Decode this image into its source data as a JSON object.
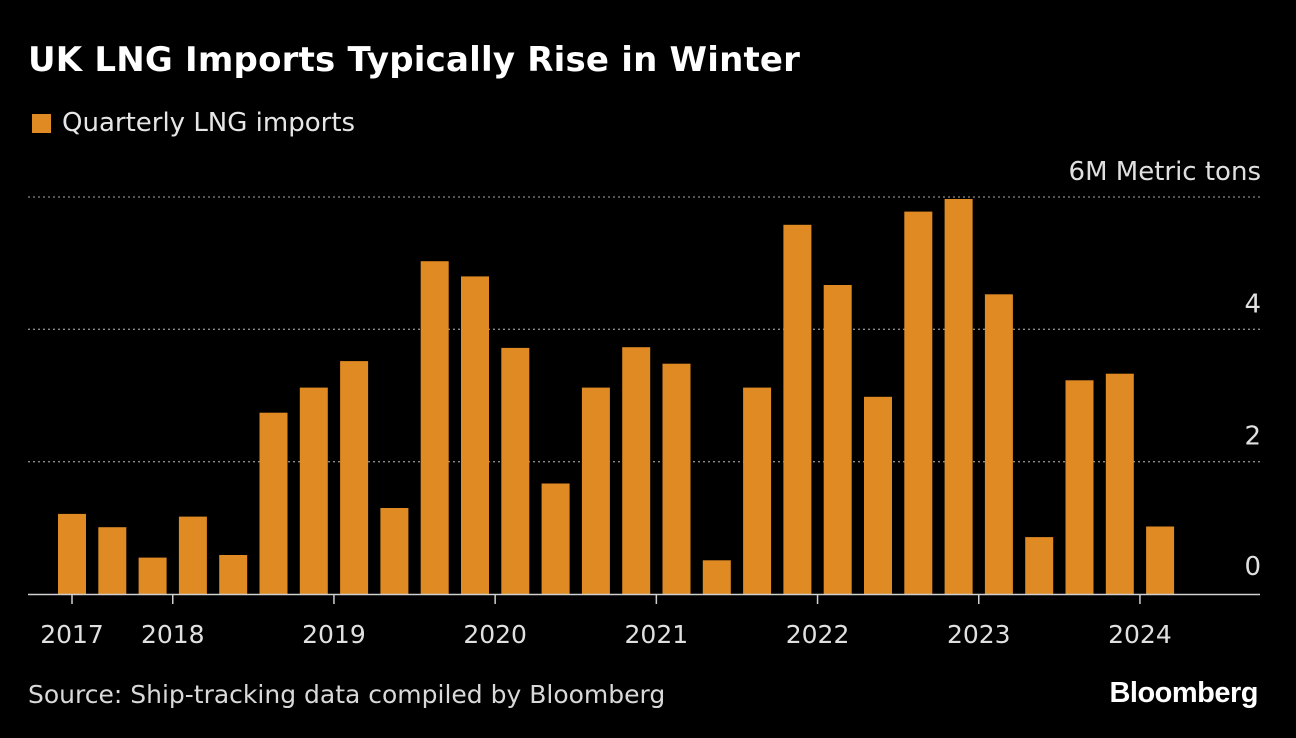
{
  "title": "UK LNG Imports Typically Rise in Winter",
  "legend": {
    "label": "Quarterly LNG imports"
  },
  "source": "Source: Ship-tracking data compiled by Bloomberg",
  "logo": "Bloomberg",
  "colors": {
    "bar": "#df8a22",
    "background": "#000000",
    "grid": "#8a8a8a",
    "text": "#e0e0e0"
  },
  "chart_data": {
    "type": "bar",
    "series": [
      {
        "name": "Quarterly LNG imports",
        "values": [
          1.21,
          1.01,
          0.55,
          1.17,
          0.59,
          2.74,
          3.12,
          3.52,
          1.3,
          5.03,
          4.8,
          3.72,
          1.67,
          3.12,
          3.73,
          3.48,
          0.51,
          3.12,
          5.58,
          4.67,
          2.98,
          5.78,
          5.97,
          4.53,
          0.86,
          3.23,
          3.33,
          1.02
        ]
      }
    ],
    "categories": [
      "2017 Q1",
      "2017 Q2",
      "2017 Q3",
      "2017 Q4",
      "2018 Q1",
      "2018 Q2",
      "2018 Q3",
      "2018 Q4",
      "2019 Q1",
      "2019 Q2",
      "2019 Q3",
      "2019 Q4",
      "2020 Q1",
      "2020 Q2",
      "2020 Q3",
      "2020 Q4",
      "2021 Q1",
      "2021 Q2",
      "2021 Q3",
      "2021 Q4",
      "2022 Q1",
      "2022 Q2",
      "2022 Q3",
      "2022 Q4",
      "2023 Q1",
      "2023 Q2",
      "2023 Q3",
      "2023 Q4"
    ],
    "x_tick_labels": [
      "2017",
      "2018",
      "2019",
      "2020",
      "2021",
      "2022",
      "2023",
      "2024"
    ],
    "y_ticks": [
      0,
      2,
      4,
      6
    ],
    "y_tick_labels": [
      "0",
      "2",
      "4",
      "6M Metric tons"
    ],
    "ylim": [
      0,
      6
    ],
    "grid": true,
    "legend_position": "top-left",
    "y_axis_position": "right"
  }
}
